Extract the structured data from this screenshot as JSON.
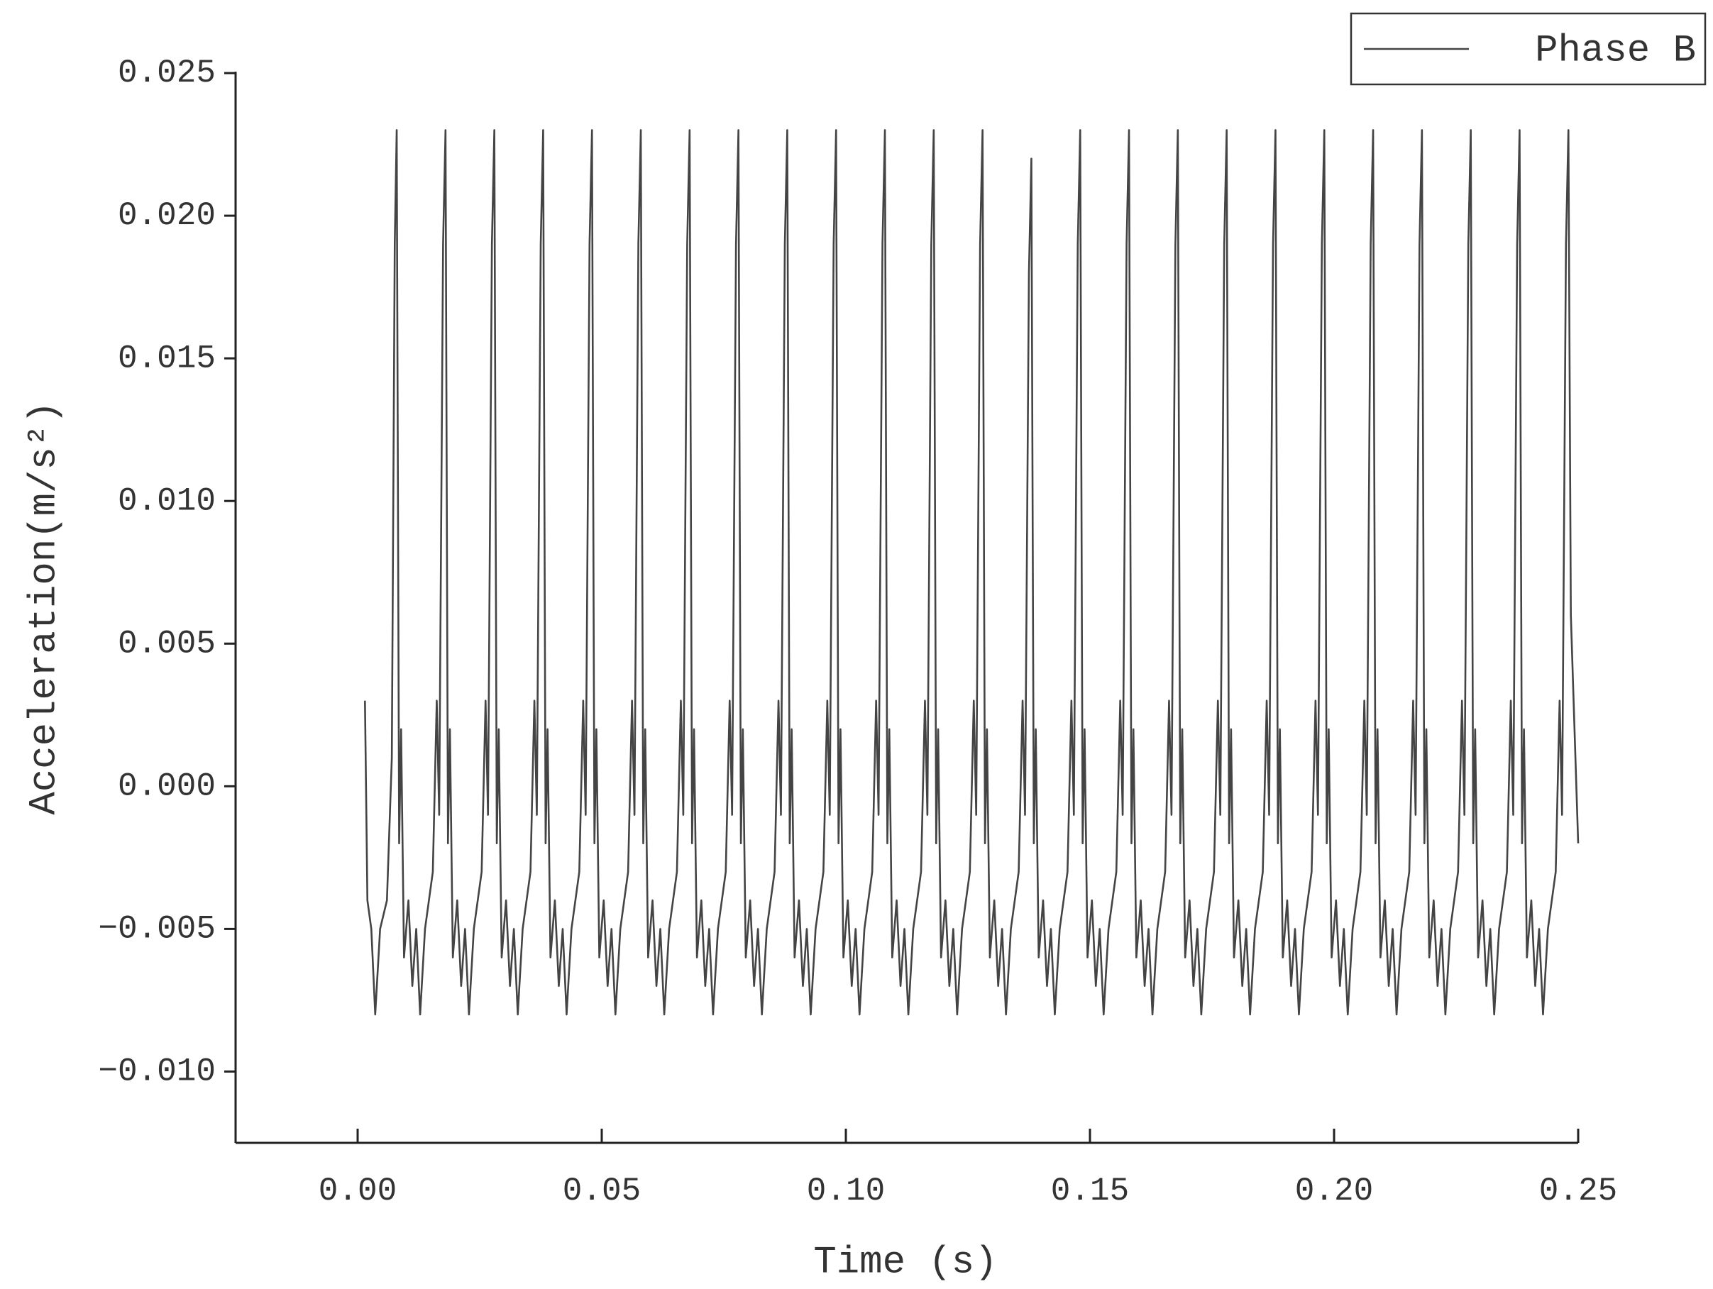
{
  "chart_data": {
    "type": "line",
    "xlabel": "Time (s)",
    "ylabel": "Acceleration(m/s²)",
    "xlim": [
      -0.025,
      0.25
    ],
    "ylim": [
      -0.0125,
      0.025
    ],
    "xticks": [
      {
        "value": 0,
        "label": "0.00"
      },
      {
        "value": 0.05,
        "label": "0.05"
      },
      {
        "value": 0.1,
        "label": "0.10"
      },
      {
        "value": 0.15,
        "label": "0.15"
      },
      {
        "value": 0.2,
        "label": "0.20"
      },
      {
        "value": 0.25,
        "label": "0.25"
      }
    ],
    "yticks": [
      {
        "value": -0.01,
        "label": "−0.010"
      },
      {
        "value": -0.005,
        "label": "−0.005"
      },
      {
        "value": 0,
        "label": "0.000"
      },
      {
        "value": 0.005,
        "label": "0.005"
      },
      {
        "value": 0.01,
        "label": "0.010"
      },
      {
        "value": 0.015,
        "label": "0.015"
      },
      {
        "value": 0.02,
        "label": "0.020"
      },
      {
        "value": 0.025,
        "label": "0.025"
      }
    ],
    "legend": "upper right",
    "x": [
      0.0015,
      0.002,
      0.0028,
      0.0036,
      0.0046,
      0.006,
      0.007,
      0.0076,
      0.008,
      0.0085,
      0.0089,
      0.0095,
      0.0104,
      0.0112,
      0.012,
      0.0128,
      0.0138,
      0.0154,
      0.0162,
      0.0167,
      0.0175,
      0.018,
      0.0185,
      0.0189,
      0.0195,
      0.0204,
      0.0212,
      0.022,
      0.0228,
      0.0238,
      0.0254,
      0.0262,
      0.0267,
      0.0275,
      0.028,
      0.0285,
      0.0289,
      0.0295,
      0.0304,
      0.0312,
      0.032,
      0.0328,
      0.0338,
      0.0354,
      0.0362,
      0.0367,
      0.0375,
      0.038,
      0.0385,
      0.0389,
      0.0395,
      0.0404,
      0.0412,
      0.042,
      0.0428,
      0.0438,
      0.0454,
      0.0462,
      0.0467,
      0.0475,
      0.048,
      0.0485,
      0.0489,
      0.0495,
      0.0504,
      0.0512,
      0.052,
      0.0528,
      0.0538,
      0.0554,
      0.0562,
      0.0567,
      0.0575,
      0.058,
      0.0585,
      0.0589,
      0.0595,
      0.0604,
      0.0612,
      0.062,
      0.0628,
      0.0638,
      0.0654,
      0.0662,
      0.0667,
      0.0675,
      0.068,
      0.0685,
      0.0689,
      0.0695,
      0.0704,
      0.0712,
      0.072,
      0.0728,
      0.0738,
      0.0754,
      0.0762,
      0.0767,
      0.0775,
      0.078,
      0.0785,
      0.0789,
      0.0795,
      0.0804,
      0.0812,
      0.082,
      0.0828,
      0.0838,
      0.0854,
      0.0862,
      0.0867,
      0.0875,
      0.088,
      0.0885,
      0.0889,
      0.0895,
      0.0904,
      0.0912,
      0.092,
      0.0928,
      0.0938,
      0.0954,
      0.0962,
      0.0967,
      0.0975,
      0.098,
      0.0985,
      0.0989,
      0.0995,
      0.1004,
      0.1012,
      0.102,
      0.1028,
      0.1038,
      0.1054,
      0.1062,
      0.1067,
      0.1075,
      0.108,
      0.1085,
      0.1089,
      0.1095,
      0.1104,
      0.1112,
      0.112,
      0.1128,
      0.1138,
      0.1154,
      0.1162,
      0.1167,
      0.1175,
      0.118,
      0.1185,
      0.1189,
      0.1195,
      0.1204,
      0.1212,
      0.122,
      0.1228,
      0.1238,
      0.1254,
      0.1262,
      0.1267,
      0.1275,
      0.128,
      0.1285,
      0.1289,
      0.1295,
      0.1304,
      0.1312,
      0.132,
      0.1328,
      0.1338,
      0.1354,
      0.1362,
      0.1367,
      0.1375,
      0.138,
      0.1385,
      0.1389,
      0.1395,
      0.1404,
      0.1412,
      0.142,
      0.1428,
      0.1438,
      0.1454,
      0.1462,
      0.1467,
      0.1475,
      0.148,
      0.1485,
      0.1489,
      0.1495,
      0.1504,
      0.1512,
      0.152,
      0.1528,
      0.1538,
      0.1554,
      0.1562,
      0.1567,
      0.1575,
      0.158,
      0.1585,
      0.1589,
      0.1595,
      0.1604,
      0.1612,
      0.162,
      0.1628,
      0.1638,
      0.1654,
      0.1662,
      0.1667,
      0.1675,
      0.168,
      0.1685,
      0.1689,
      0.1695,
      0.1704,
      0.1712,
      0.172,
      0.1728,
      0.1738,
      0.1754,
      0.1762,
      0.1767,
      0.1775,
      0.178,
      0.1785,
      0.1789,
      0.1795,
      0.1804,
      0.1812,
      0.182,
      0.1828,
      0.1838,
      0.1854,
      0.1862,
      0.1867,
      0.1875,
      0.188,
      0.1885,
      0.1889,
      0.1895,
      0.1904,
      0.1912,
      0.192,
      0.1928,
      0.1938,
      0.1954,
      0.1962,
      0.1967,
      0.1975,
      0.198,
      0.1985,
      0.1989,
      0.1995,
      0.2004,
      0.2012,
      0.202,
      0.2028,
      0.2038,
      0.2054,
      0.2062,
      0.2067,
      0.2075,
      0.208,
      0.2085,
      0.2089,
      0.2095,
      0.2104,
      0.2112,
      0.212,
      0.2128,
      0.2138,
      0.2154,
      0.2162,
      0.2167,
      0.2175,
      0.218,
      0.2185,
      0.2189,
      0.2195,
      0.2204,
      0.2212,
      0.222,
      0.2228,
      0.2238,
      0.2254,
      0.2262,
      0.2267,
      0.2275,
      0.228,
      0.2285,
      0.2289,
      0.2295,
      0.2304,
      0.2312,
      0.232,
      0.2328,
      0.2338,
      0.2354,
      0.2362,
      0.2367,
      0.2375,
      0.238,
      0.2385,
      0.2389,
      0.2395,
      0.2404,
      0.2412,
      0.242,
      0.2428,
      0.2438,
      0.2454,
      0.2462,
      0.2467,
      0.2475,
      0.248,
      0.2485,
      0.25
    ],
    "series": [
      {
        "name": "Phase B",
        "color": "#444444",
        "values": [
          0.003,
          -0.004,
          -0.005,
          -0.008,
          -0.005,
          -0.004,
          0.001,
          0.019,
          0.023,
          -0.002,
          0.002,
          -0.006,
          -0.004,
          -0.007,
          -0.005,
          -0.008,
          -0.005,
          -0.003,
          0.003,
          -0.001,
          0.019,
          0.023,
          -0.002,
          0.002,
          -0.006,
          -0.004,
          -0.007,
          -0.005,
          -0.008,
          -0.005,
          -0.003,
          0.003,
          -0.001,
          0.019,
          0.023,
          -0.002,
          0.002,
          -0.006,
          -0.004,
          -0.007,
          -0.005,
          -0.008,
          -0.005,
          -0.003,
          0.003,
          -0.001,
          0.019,
          0.023,
          -0.002,
          0.002,
          -0.006,
          -0.004,
          -0.007,
          -0.005,
          -0.008,
          -0.005,
          -0.003,
          0.003,
          -0.001,
          0.019,
          0.023,
          -0.002,
          0.002,
          -0.006,
          -0.004,
          -0.007,
          -0.005,
          -0.008,
          -0.005,
          -0.003,
          0.003,
          -0.001,
          0.019,
          0.023,
          -0.002,
          0.002,
          -0.006,
          -0.004,
          -0.007,
          -0.005,
          -0.008,
          -0.005,
          -0.003,
          0.003,
          -0.001,
          0.019,
          0.023,
          -0.002,
          0.002,
          -0.006,
          -0.004,
          -0.007,
          -0.005,
          -0.008,
          -0.005,
          -0.003,
          0.003,
          -0.001,
          0.019,
          0.023,
          -0.002,
          0.002,
          -0.006,
          -0.004,
          -0.007,
          -0.005,
          -0.008,
          -0.005,
          -0.003,
          0.003,
          -0.001,
          0.019,
          0.023,
          -0.002,
          0.002,
          -0.006,
          -0.004,
          -0.007,
          -0.005,
          -0.008,
          -0.005,
          -0.003,
          0.003,
          -0.001,
          0.019,
          0.023,
          -0.002,
          0.002,
          -0.006,
          -0.004,
          -0.007,
          -0.005,
          -0.008,
          -0.005,
          -0.003,
          0.003,
          -0.001,
          0.019,
          0.023,
          -0.002,
          0.002,
          -0.006,
          -0.004,
          -0.007,
          -0.005,
          -0.008,
          -0.005,
          -0.003,
          0.003,
          -0.001,
          0.019,
          0.023,
          -0.002,
          0.002,
          -0.006,
          -0.004,
          -0.007,
          -0.005,
          -0.008,
          -0.005,
          -0.003,
          0.003,
          -0.001,
          0.019,
          0.023,
          -0.002,
          0.002,
          -0.006,
          -0.004,
          -0.007,
          -0.005,
          -0.008,
          -0.005,
          -0.003,
          0.003,
          -0.001,
          0.018,
          0.022,
          -0.002,
          0.002,
          -0.006,
          -0.004,
          -0.007,
          -0.005,
          -0.008,
          -0.005,
          -0.003,
          0.003,
          -0.001,
          0.019,
          0.023,
          -0.002,
          0.002,
          -0.006,
          -0.004,
          -0.007,
          -0.005,
          -0.008,
          -0.005,
          -0.003,
          0.003,
          -0.001,
          0.019,
          0.023,
          -0.002,
          0.002,
          -0.006,
          -0.004,
          -0.007,
          -0.005,
          -0.008,
          -0.005,
          -0.003,
          0.003,
          -0.001,
          0.019,
          0.023,
          -0.002,
          0.002,
          -0.006,
          -0.004,
          -0.007,
          -0.005,
          -0.008,
          -0.005,
          -0.003,
          0.003,
          -0.001,
          0.019,
          0.023,
          -0.002,
          0.002,
          -0.006,
          -0.004,
          -0.007,
          -0.005,
          -0.008,
          -0.005,
          -0.003,
          0.003,
          -0.001,
          0.019,
          0.023,
          -0.002,
          0.002,
          -0.006,
          -0.004,
          -0.007,
          -0.005,
          -0.008,
          -0.005,
          -0.003,
          0.003,
          -0.001,
          0.019,
          0.023,
          -0.002,
          0.002,
          -0.006,
          -0.004,
          -0.007,
          -0.005,
          -0.008,
          -0.005,
          -0.003,
          0.003,
          -0.001,
          0.019,
          0.023,
          -0.002,
          0.002,
          -0.006,
          -0.004,
          -0.007,
          -0.005,
          -0.008,
          -0.005,
          -0.003,
          0.003,
          -0.001,
          0.019,
          0.023,
          -0.002,
          0.002,
          -0.006,
          -0.004,
          -0.007,
          -0.005,
          -0.008,
          -0.005,
          -0.003,
          0.003,
          -0.001,
          0.019,
          0.023,
          -0.002,
          0.002,
          -0.006,
          -0.004,
          -0.007,
          -0.005,
          -0.008,
          -0.005,
          -0.003,
          0.003,
          -0.001,
          0.019,
          0.023,
          -0.002,
          0.002,
          -0.006,
          -0.004,
          -0.007,
          -0.005,
          -0.008,
          -0.005,
          -0.003,
          0.003,
          -0.001,
          0.019,
          0.023,
          0.006,
          -0.002
        ]
      }
    ]
  }
}
